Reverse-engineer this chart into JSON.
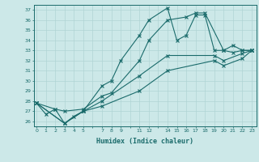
{
  "xlabel": "Humidex (Indice chaleur)",
  "bg_color": "#cce8e8",
  "grid_color": "#b0d4d4",
  "line_color": "#1a6b6b",
  "lines": [
    {
      "x": [
        0,
        1,
        2,
        3,
        4,
        5,
        7,
        8,
        9,
        11,
        12,
        14,
        15,
        16,
        17,
        18,
        19,
        20,
        21,
        22,
        23
      ],
      "y": [
        27.8,
        26.7,
        27.2,
        25.8,
        26.5,
        27.0,
        29.5,
        30.0,
        32.0,
        34.5,
        36.0,
        37.2,
        34.0,
        34.5,
        36.5,
        36.5,
        33.0,
        33.0,
        33.5,
        33.0,
        33.0
      ]
    },
    {
      "x": [
        0,
        2,
        3,
        5,
        7,
        8,
        11,
        12,
        14,
        16,
        17,
        18,
        20,
        21,
        22,
        23
      ],
      "y": [
        27.8,
        27.2,
        27.0,
        27.2,
        28.5,
        28.8,
        32.0,
        34.0,
        36.0,
        36.3,
        36.7,
        36.7,
        33.0,
        32.8,
        33.0,
        33.0
      ]
    },
    {
      "x": [
        0,
        3,
        5,
        7,
        11,
        14,
        19,
        20,
        22,
        23
      ],
      "y": [
        27.8,
        25.8,
        27.0,
        28.0,
        30.5,
        32.5,
        32.5,
        32.0,
        32.7,
        33.0
      ]
    },
    {
      "x": [
        0,
        3,
        5,
        7,
        11,
        14,
        19,
        20,
        22,
        23
      ],
      "y": [
        27.8,
        25.8,
        27.0,
        27.5,
        29.0,
        31.0,
        32.0,
        31.5,
        32.2,
        33.0
      ]
    }
  ],
  "xlim": [
    -0.3,
    23.5
  ],
  "ylim": [
    25.5,
    37.5
  ],
  "yticks": [
    26,
    27,
    28,
    29,
    30,
    31,
    32,
    33,
    34,
    35,
    36,
    37
  ],
  "xtick_labels": [
    "0",
    "1",
    "2",
    "3",
    "4",
    "5",
    "",
    "7",
    "8",
    "9",
    "",
    "11",
    "12",
    "",
    "14",
    "15",
    "16",
    "17",
    "18",
    "19",
    "20",
    "21",
    "22",
    "23"
  ],
  "xtick_positions": [
    0,
    1,
    2,
    3,
    4,
    5,
    6,
    7,
    8,
    9,
    10,
    11,
    12,
    13,
    14,
    15,
    16,
    17,
    18,
    19,
    20,
    21,
    22,
    23
  ]
}
